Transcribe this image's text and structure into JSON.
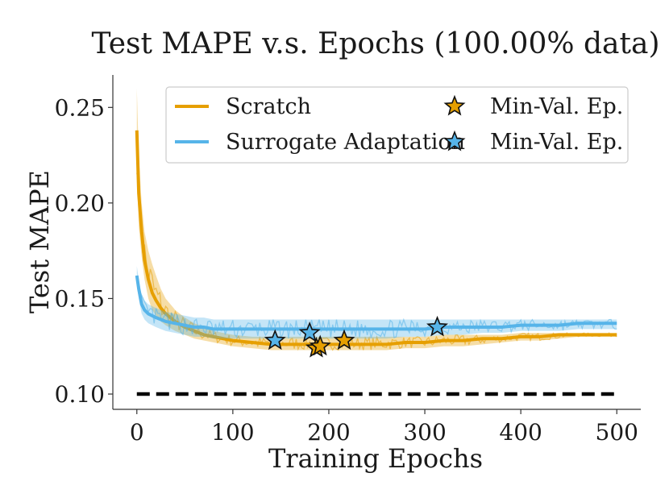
{
  "chart_data": {
    "type": "line",
    "title": "Test MAPE v.s. Epochs (100.00% data)",
    "xlabel": "Training Epochs",
    "ylabel": "Test MAPE",
    "xlim": [
      -25,
      525
    ],
    "ylim": [
      0.092,
      0.267
    ],
    "x_ticks": [
      0,
      100,
      200,
      300,
      400,
      500
    ],
    "y_ticks": [
      0.1,
      0.15,
      0.2,
      0.25
    ],
    "x_tick_labels": [
      "0",
      "100",
      "200",
      "300",
      "400",
      "500"
    ],
    "y_tick_labels": [
      "0.10",
      "0.15",
      "0.20",
      "0.25"
    ],
    "legend_position": "top-right",
    "series": [
      {
        "name": "Scratch",
        "color": "#E69F00",
        "x": [
          0,
          2,
          5,
          8,
          12,
          16,
          20,
          25,
          30,
          40,
          50,
          60,
          70,
          80,
          90,
          100,
          120,
          140,
          160,
          180,
          200,
          220,
          240,
          260,
          280,
          300,
          320,
          340,
          360,
          380,
          400,
          420,
          440,
          460,
          480,
          500
        ],
        "values": [
          0.238,
          0.205,
          0.185,
          0.17,
          0.16,
          0.153,
          0.149,
          0.145,
          0.142,
          0.138,
          0.135,
          0.133,
          0.131,
          0.13,
          0.129,
          0.128,
          0.127,
          0.126,
          0.126,
          0.126,
          0.126,
          0.126,
          0.126,
          0.126,
          0.127,
          0.127,
          0.128,
          0.128,
          0.129,
          0.129,
          0.13,
          0.13,
          0.131,
          0.131,
          0.131,
          0.131
        ],
        "upper": [
          0.26,
          0.225,
          0.2,
          0.185,
          0.175,
          0.168,
          0.162,
          0.155,
          0.15,
          0.144,
          0.14,
          0.137,
          0.135,
          0.133,
          0.132,
          0.131,
          0.13,
          0.13,
          0.13,
          0.13,
          0.13,
          0.13,
          0.13,
          0.13,
          0.13,
          0.13,
          0.131,
          0.131,
          0.131,
          0.131,
          0.132,
          0.132,
          0.132,
          0.132,
          0.132,
          0.132
        ],
        "lower": [
          0.215,
          0.188,
          0.172,
          0.16,
          0.15,
          0.144,
          0.141,
          0.138,
          0.136,
          0.133,
          0.131,
          0.129,
          0.128,
          0.127,
          0.126,
          0.125,
          0.124,
          0.123,
          0.123,
          0.123,
          0.123,
          0.123,
          0.123,
          0.123,
          0.124,
          0.124,
          0.125,
          0.125,
          0.126,
          0.127,
          0.128,
          0.128,
          0.129,
          0.13,
          0.13,
          0.13
        ],
        "min_val_epochs": [
          {
            "x": 187,
            "y": 0.124
          },
          {
            "x": 191,
            "y": 0.125
          },
          {
            "x": 216,
            "y": 0.128
          }
        ]
      },
      {
        "name": "Surrogate Adaptation",
        "color": "#56B4E9",
        "x": [
          0,
          2,
          5,
          8,
          12,
          16,
          20,
          25,
          30,
          40,
          50,
          60,
          70,
          80,
          90,
          100,
          120,
          140,
          160,
          180,
          200,
          220,
          240,
          260,
          280,
          300,
          320,
          340,
          360,
          380,
          400,
          420,
          440,
          460,
          480,
          500
        ],
        "values": [
          0.162,
          0.155,
          0.147,
          0.144,
          0.142,
          0.141,
          0.14,
          0.139,
          0.138,
          0.137,
          0.136,
          0.135,
          0.135,
          0.134,
          0.134,
          0.134,
          0.134,
          0.134,
          0.134,
          0.134,
          0.134,
          0.134,
          0.134,
          0.134,
          0.134,
          0.134,
          0.135,
          0.135,
          0.135,
          0.135,
          0.136,
          0.136,
          0.136,
          0.137,
          0.137,
          0.137
        ],
        "upper": [
          0.167,
          0.16,
          0.152,
          0.149,
          0.147,
          0.146,
          0.145,
          0.144,
          0.143,
          0.142,
          0.141,
          0.14,
          0.14,
          0.139,
          0.139,
          0.139,
          0.139,
          0.139,
          0.139,
          0.139,
          0.139,
          0.139,
          0.139,
          0.139,
          0.139,
          0.139,
          0.139,
          0.139,
          0.139,
          0.139,
          0.139,
          0.139,
          0.139,
          0.139,
          0.139,
          0.139
        ],
        "lower": [
          0.157,
          0.15,
          0.142,
          0.139,
          0.137,
          0.136,
          0.135,
          0.134,
          0.133,
          0.132,
          0.131,
          0.13,
          0.13,
          0.129,
          0.129,
          0.129,
          0.129,
          0.129,
          0.129,
          0.129,
          0.129,
          0.129,
          0.129,
          0.129,
          0.13,
          0.13,
          0.131,
          0.131,
          0.132,
          0.132,
          0.133,
          0.133,
          0.133,
          0.134,
          0.134,
          0.134
        ],
        "min_val_epochs": [
          {
            "x": 144,
            "y": 0.128
          },
          {
            "x": 180,
            "y": 0.132
          },
          {
            "x": 313,
            "y": 0.135
          }
        ]
      }
    ],
    "baseline": {
      "style": "dashed",
      "color": "#000000",
      "x": [
        0,
        500
      ],
      "value": 0.1
    },
    "legend": [
      {
        "label": "Scratch",
        "kind": "line",
        "color": "#E69F00"
      },
      {
        "label": "Min-Val. Ep.",
        "kind": "star",
        "color": "#E69F00"
      },
      {
        "label": "Surrogate Adaptation",
        "kind": "line",
        "color": "#56B4E9"
      },
      {
        "label": "Min-Val. Ep.",
        "kind": "star",
        "color": "#56B4E9"
      }
    ]
  }
}
